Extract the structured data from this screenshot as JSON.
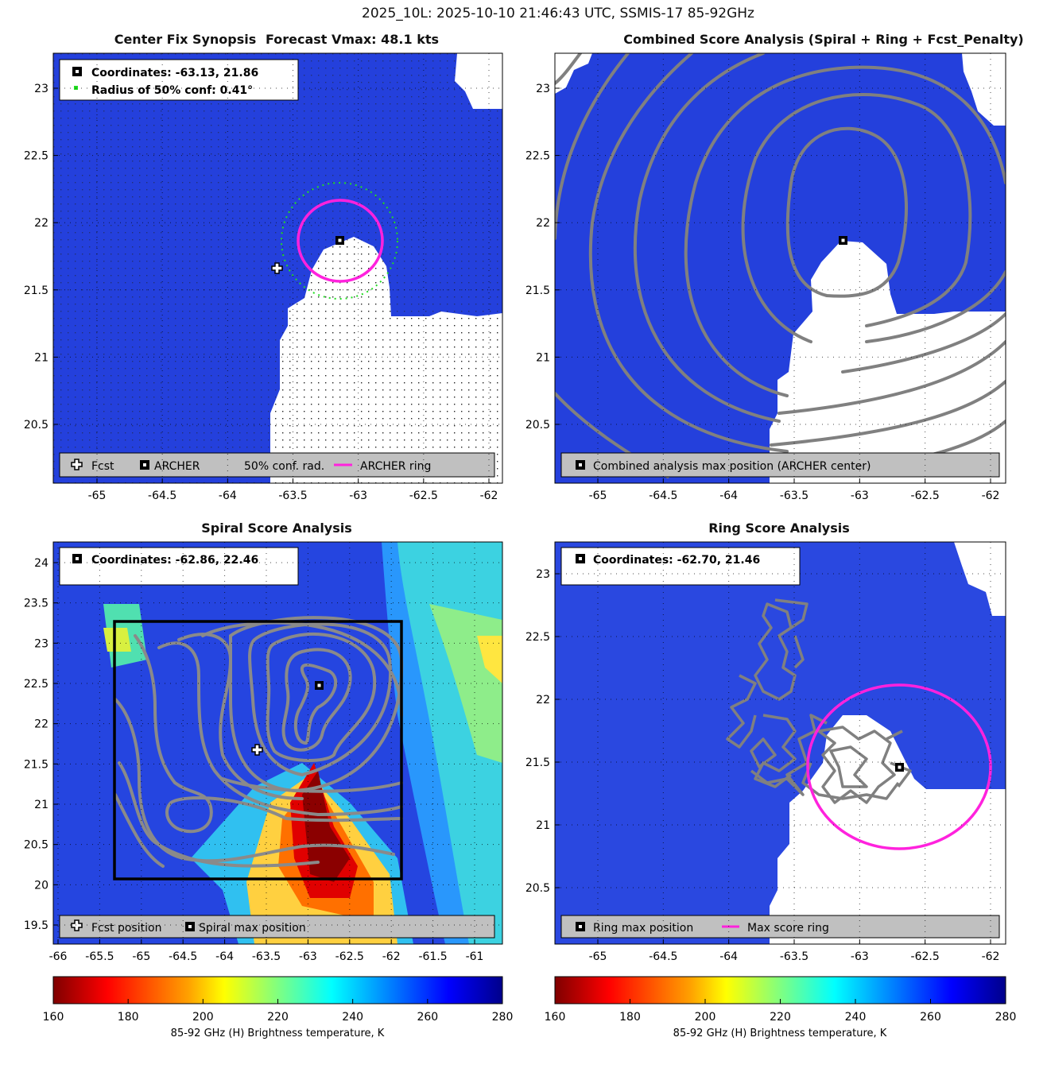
{
  "figure_title": "2025_10L: 2025-10-10 21:46:43 UTC, SSMIS-17 85-92GHz",
  "panels": {
    "synopsis": {
      "title_left": "Center Fix Synopsis",
      "title_right": "Forecast Vmax: 48.1 kts",
      "info_line1": "Coordinates: -63.13, 21.86",
      "info_line2": "Radius of 50% conf: 0.41°",
      "legend": [
        "Fcst",
        "ARCHER",
        "50% conf. rad.",
        "ARCHER ring"
      ],
      "x_ticks": [
        "-65",
        "-64.5",
        "-64",
        "-63.5",
        "-63",
        "-62.5",
        "-62"
      ],
      "y_ticks": [
        "23",
        "22.5",
        "22",
        "21.5",
        "21",
        "20.5"
      ]
    },
    "combined": {
      "title": "Combined Score Analysis (Spiral + Ring + Fcst_Penalty)",
      "legend": [
        "Combined analysis max position (ARCHER center)"
      ],
      "x_ticks": [
        "-65",
        "-64.5",
        "-64",
        "-63.5",
        "-63",
        "-62.5",
        "-62"
      ],
      "y_ticks": [
        "23",
        "22.5",
        "22",
        "21.5",
        "21",
        "20.5"
      ]
    },
    "spiral": {
      "title": "Spiral Score Analysis",
      "info_line1": "Coordinates: -62.86, 22.46",
      "legend": [
        "Fcst position",
        "Spiral max position"
      ],
      "x_ticks": [
        "-66",
        "-65.5",
        "-65",
        "-64.5",
        "-64",
        "-63.5",
        "-63",
        "-62.5",
        "-62",
        "-61.5",
        "-61"
      ],
      "y_ticks": [
        "24",
        "23.5",
        "23",
        "22.5",
        "22",
        "21.5",
        "21",
        "20.5",
        "20",
        "19.5"
      ]
    },
    "ring": {
      "title": "Ring Score Analysis",
      "info_line1": "Coordinates: -62.70, 21.46",
      "legend": [
        "Ring max position",
        "Max score ring"
      ],
      "x_ticks": [
        "-65",
        "-64.5",
        "-64",
        "-63.5",
        "-63",
        "-62.5",
        "-62"
      ],
      "y_ticks": [
        "23",
        "22.5",
        "22",
        "21.5",
        "21",
        "20.5"
      ]
    }
  },
  "colorbar": {
    "label": "85-92 GHz (H) Brightness temperature, K",
    "ticks": [
      "160",
      "180",
      "200",
      "220",
      "240",
      "260",
      "280"
    ]
  },
  "colors": {
    "deep_blue": "#1f3ad8",
    "magenta": "#ff22dd",
    "contour_gray": "#808080",
    "legend_bg": "#c0c0c0"
  },
  "chart_data": [
    {
      "type": "heatmap",
      "panel": "Center Fix Synopsis",
      "xlim": [
        -65.3,
        -61.9
      ],
      "ylim": [
        20.05,
        23.25
      ],
      "fcst_position": [
        -63.6,
        21.66
      ],
      "archer_center": [
        -63.13,
        21.86
      ],
      "archer_ring_radius_deg": 0.29,
      "conf_radius_deg": 0.41
    },
    {
      "type": "heatmap",
      "panel": "Combined Score Analysis",
      "xlim": [
        -65.3,
        -61.9
      ],
      "ylim": [
        20.05,
        23.25
      ],
      "max_position": [
        -63.13,
        21.86
      ]
    },
    {
      "type": "heatmap",
      "panel": "Spiral Score Analysis",
      "xlim": [
        -66.0,
        -60.7
      ],
      "ylim": [
        19.3,
        24.3
      ],
      "fcst_position": [
        -63.6,
        21.66
      ],
      "spiral_max_position": [
        -62.86,
        22.46
      ],
      "colorbar_range": [
        160,
        280
      ]
    },
    {
      "type": "heatmap",
      "panel": "Ring Score Analysis",
      "xlim": [
        -65.3,
        -61.9
      ],
      "ylim": [
        20.05,
        23.25
      ],
      "ring_max_position": [
        -62.7,
        21.46
      ],
      "ring_radius_deg": 0.7
    }
  ]
}
